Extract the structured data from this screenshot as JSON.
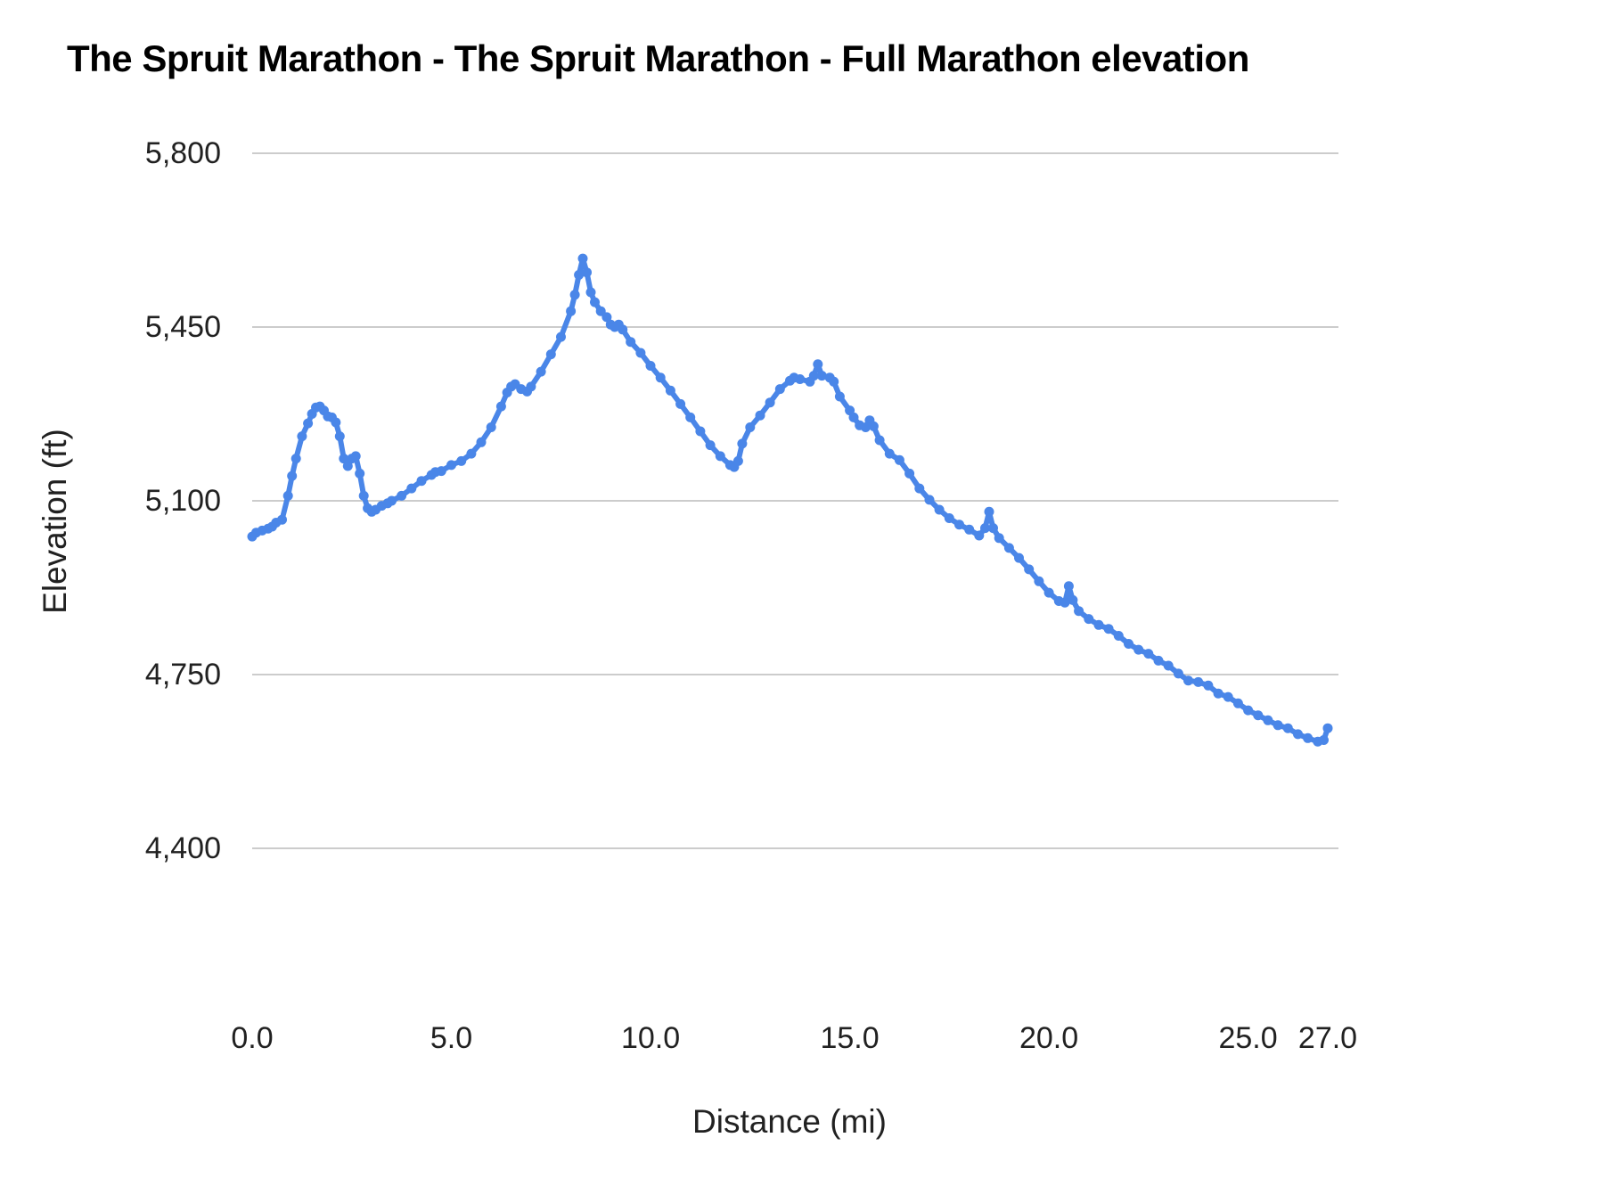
{
  "chart_data": {
    "type": "line",
    "title": "The Spruit Marathon - The Spruit Marathon - Full Marathon elevation",
    "xlabel": "Distance (mi)",
    "ylabel": "Elevation (ft)",
    "xlim": [
      0,
      27
    ],
    "ylim": [
      4400,
      5800
    ],
    "grid": "horizontal",
    "legend": "none",
    "line_color": "#4a86e8",
    "grid_color": "#cccccc",
    "text_color": "#212121",
    "background_color": "#ffffff",
    "x_ticks": [
      {
        "value": 0,
        "label": "0.0"
      },
      {
        "value": 5,
        "label": "5.0"
      },
      {
        "value": 10,
        "label": "10.0"
      },
      {
        "value": 15,
        "label": "15.0"
      },
      {
        "value": 20,
        "label": "20.0"
      },
      {
        "value": 25,
        "label": "25.0"
      },
      {
        "value": 27,
        "label": "27.0"
      }
    ],
    "y_ticks": [
      {
        "value": 4400,
        "label": "4,400"
      },
      {
        "value": 4750,
        "label": "4,750"
      },
      {
        "value": 5100,
        "label": "5,100"
      },
      {
        "value": 5450,
        "label": "5,450"
      },
      {
        "value": 5800,
        "label": "5,800"
      }
    ],
    "series_name": "Full Marathon elevation",
    "points": [
      [
        0.0,
        5028
      ],
      [
        0.1,
        5036
      ],
      [
        0.25,
        5040
      ],
      [
        0.4,
        5044
      ],
      [
        0.5,
        5048
      ],
      [
        0.6,
        5056
      ],
      [
        0.75,
        5062
      ],
      [
        0.9,
        5110
      ],
      [
        1.0,
        5150
      ],
      [
        1.1,
        5185
      ],
      [
        1.25,
        5230
      ],
      [
        1.4,
        5256
      ],
      [
        1.5,
        5275
      ],
      [
        1.6,
        5288
      ],
      [
        1.7,
        5290
      ],
      [
        1.8,
        5282
      ],
      [
        1.9,
        5270
      ],
      [
        2.0,
        5268
      ],
      [
        2.1,
        5258
      ],
      [
        2.2,
        5230
      ],
      [
        2.3,
        5185
      ],
      [
        2.4,
        5170
      ],
      [
        2.5,
        5185
      ],
      [
        2.6,
        5190
      ],
      [
        2.7,
        5155
      ],
      [
        2.8,
        5110
      ],
      [
        2.9,
        5085
      ],
      [
        3.0,
        5078
      ],
      [
        3.1,
        5082
      ],
      [
        3.25,
        5090
      ],
      [
        3.4,
        5095
      ],
      [
        3.5,
        5100
      ],
      [
        3.75,
        5110
      ],
      [
        4.0,
        5125
      ],
      [
        4.25,
        5140
      ],
      [
        4.5,
        5152
      ],
      [
        4.6,
        5158
      ],
      [
        4.75,
        5160
      ],
      [
        5.0,
        5172
      ],
      [
        5.25,
        5180
      ],
      [
        5.5,
        5195
      ],
      [
        5.75,
        5218
      ],
      [
        6.0,
        5248
      ],
      [
        6.25,
        5290
      ],
      [
        6.4,
        5318
      ],
      [
        6.5,
        5330
      ],
      [
        6.6,
        5335
      ],
      [
        6.75,
        5325
      ],
      [
        6.9,
        5320
      ],
      [
        7.0,
        5330
      ],
      [
        7.25,
        5360
      ],
      [
        7.5,
        5395
      ],
      [
        7.75,
        5430
      ],
      [
        8.0,
        5482
      ],
      [
        8.1,
        5515
      ],
      [
        8.2,
        5555
      ],
      [
        8.3,
        5588
      ],
      [
        8.4,
        5560
      ],
      [
        8.5,
        5520
      ],
      [
        8.6,
        5500
      ],
      [
        8.75,
        5482
      ],
      [
        8.9,
        5470
      ],
      [
        9.0,
        5455
      ],
      [
        9.1,
        5450
      ],
      [
        9.2,
        5455
      ],
      [
        9.3,
        5445
      ],
      [
        9.5,
        5420
      ],
      [
        9.75,
        5398
      ],
      [
        10.0,
        5372
      ],
      [
        10.25,
        5348
      ],
      [
        10.5,
        5322
      ],
      [
        10.75,
        5295
      ],
      [
        11.0,
        5268
      ],
      [
        11.25,
        5240
      ],
      [
        11.5,
        5212
      ],
      [
        11.75,
        5190
      ],
      [
        12.0,
        5172
      ],
      [
        12.1,
        5168
      ],
      [
        12.2,
        5180
      ],
      [
        12.3,
        5215
      ],
      [
        12.5,
        5248
      ],
      [
        12.75,
        5272
      ],
      [
        13.0,
        5298
      ],
      [
        13.25,
        5325
      ],
      [
        13.5,
        5342
      ],
      [
        13.6,
        5348
      ],
      [
        13.75,
        5345
      ],
      [
        14.0,
        5340
      ],
      [
        14.1,
        5352
      ],
      [
        14.2,
        5375
      ],
      [
        14.3,
        5352
      ],
      [
        14.5,
        5348
      ],
      [
        14.6,
        5340
      ],
      [
        14.75,
        5310
      ],
      [
        15.0,
        5282
      ],
      [
        15.1,
        5268
      ],
      [
        15.25,
        5252
      ],
      [
        15.4,
        5248
      ],
      [
        15.5,
        5262
      ],
      [
        15.6,
        5250
      ],
      [
        15.75,
        5222
      ],
      [
        16.0,
        5195
      ],
      [
        16.25,
        5182
      ],
      [
        16.5,
        5155
      ],
      [
        16.75,
        5125
      ],
      [
        17.0,
        5102
      ],
      [
        17.25,
        5082
      ],
      [
        17.5,
        5065
      ],
      [
        17.75,
        5052
      ],
      [
        18.0,
        5042
      ],
      [
        18.25,
        5030
      ],
      [
        18.4,
        5045
      ],
      [
        18.5,
        5078
      ],
      [
        18.6,
        5045
      ],
      [
        18.75,
        5025
      ],
      [
        19.0,
        5005
      ],
      [
        19.25,
        4985
      ],
      [
        19.5,
        4962
      ],
      [
        19.75,
        4938
      ],
      [
        20.0,
        4915
      ],
      [
        20.25,
        4898
      ],
      [
        20.4,
        4895
      ],
      [
        20.5,
        4928
      ],
      [
        20.6,
        4900
      ],
      [
        20.75,
        4878
      ],
      [
        21.0,
        4862
      ],
      [
        21.25,
        4850
      ],
      [
        21.5,
        4842
      ],
      [
        21.75,
        4828
      ],
      [
        22.0,
        4812
      ],
      [
        22.25,
        4800
      ],
      [
        22.5,
        4792
      ],
      [
        22.75,
        4778
      ],
      [
        23.0,
        4768
      ],
      [
        23.25,
        4752
      ],
      [
        23.5,
        4738
      ],
      [
        23.75,
        4735
      ],
      [
        24.0,
        4728
      ],
      [
        24.25,
        4712
      ],
      [
        24.5,
        4705
      ],
      [
        24.75,
        4692
      ],
      [
        25.0,
        4678
      ],
      [
        25.25,
        4668
      ],
      [
        25.5,
        4658
      ],
      [
        25.75,
        4648
      ],
      [
        26.0,
        4642
      ],
      [
        26.25,
        4630
      ],
      [
        26.5,
        4622
      ],
      [
        26.75,
        4615
      ],
      [
        26.9,
        4618
      ],
      [
        27.0,
        4642
      ]
    ]
  }
}
